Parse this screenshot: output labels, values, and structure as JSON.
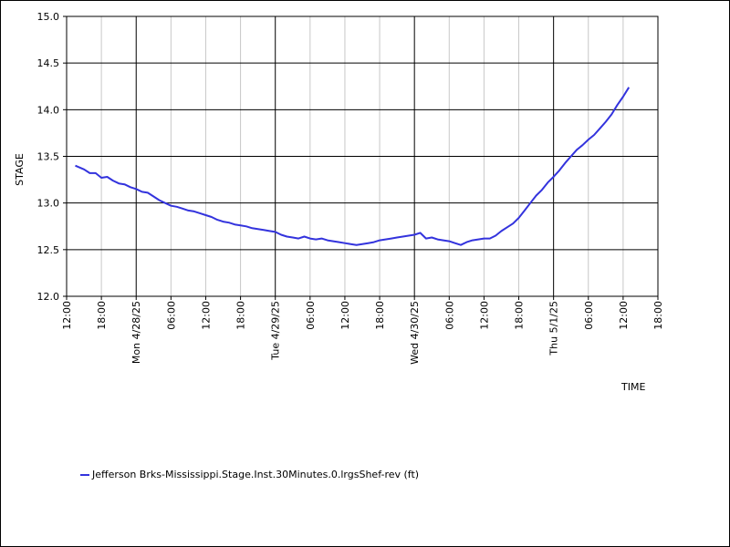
{
  "chart_data": {
    "type": "line",
    "xlabel": "TIME",
    "ylabel": "STAGE",
    "ylim": [
      12.0,
      15.0
    ],
    "y_ticks": [
      "12.0",
      "12.5",
      "13.0",
      "13.5",
      "14.0",
      "14.5",
      "15.0"
    ],
    "x_ticks": [
      {
        "hour": 12,
        "label": "12:00",
        "major": false
      },
      {
        "hour": 18,
        "label": "18:00",
        "major": false
      },
      {
        "hour": 24,
        "label": "Mon 4/28/25",
        "major": true
      },
      {
        "hour": 30,
        "label": "06:00",
        "major": false
      },
      {
        "hour": 36,
        "label": "12:00",
        "major": false
      },
      {
        "hour": 42,
        "label": "18:00",
        "major": false
      },
      {
        "hour": 48,
        "label": "Tue 4/29/25",
        "major": true
      },
      {
        "hour": 54,
        "label": "06:00",
        "major": false
      },
      {
        "hour": 60,
        "label": "12:00",
        "major": false
      },
      {
        "hour": 66,
        "label": "18:00",
        "major": false
      },
      {
        "hour": 72,
        "label": "Wed 4/30/25",
        "major": true
      },
      {
        "hour": 78,
        "label": "06:00",
        "major": false
      },
      {
        "hour": 84,
        "label": "12:00",
        "major": false
      },
      {
        "hour": 90,
        "label": "18:00",
        "major": false
      },
      {
        "hour": 96,
        "label": "Thu 5/1/25",
        "major": true
      },
      {
        "hour": 102,
        "label": "06:00",
        "major": false
      },
      {
        "hour": 108,
        "label": "12:00",
        "major": false
      },
      {
        "hour": 114,
        "label": "18:00",
        "major": false
      }
    ],
    "xlim_hours": [
      12,
      114
    ],
    "grid": true,
    "legend_position": "bottom-left",
    "series": [
      {
        "name": "Jefferson Brks-Mississippi.Stage.Inst.30Minutes.0.lrgsShef-rev (ft)",
        "color": "#3333dd",
        "x_hours": [
          13.5,
          15,
          16,
          17,
          18,
          19,
          20,
          21,
          22,
          23,
          24,
          25,
          26,
          27,
          28,
          29,
          30,
          31,
          32,
          33,
          34,
          35,
          36,
          37,
          38,
          39,
          40,
          41,
          42,
          43,
          44,
          45,
          46,
          47,
          48,
          49,
          50,
          51,
          52,
          53,
          54,
          55,
          56,
          57,
          58,
          59,
          60,
          61,
          62,
          63,
          64,
          65,
          66,
          67,
          68,
          69,
          70,
          71,
          72,
          73,
          74,
          75,
          76,
          77,
          78,
          79,
          80,
          81,
          82,
          83,
          84,
          85,
          86,
          87,
          88,
          89,
          90,
          91,
          92,
          93,
          94,
          95,
          96,
          97,
          98,
          99,
          100,
          101,
          102,
          103,
          104,
          105,
          106,
          107,
          108,
          109
        ],
        "values": [
          13.4,
          13.36,
          13.32,
          13.32,
          13.27,
          13.28,
          13.24,
          13.21,
          13.2,
          13.17,
          13.15,
          13.12,
          13.11,
          13.07,
          13.03,
          13.0,
          12.97,
          12.96,
          12.94,
          12.92,
          12.91,
          12.89,
          12.87,
          12.85,
          12.82,
          12.8,
          12.79,
          12.77,
          12.76,
          12.75,
          12.73,
          12.72,
          12.71,
          12.7,
          12.69,
          12.66,
          12.64,
          12.63,
          12.62,
          12.64,
          12.62,
          12.61,
          12.62,
          12.6,
          12.59,
          12.58,
          12.57,
          12.56,
          12.55,
          12.56,
          12.57,
          12.58,
          12.6,
          12.61,
          12.62,
          12.63,
          12.64,
          12.65,
          12.66,
          12.68,
          12.62,
          12.63,
          12.61,
          12.6,
          12.59,
          12.57,
          12.55,
          12.58,
          12.6,
          12.61,
          12.62,
          12.62,
          12.65,
          12.7,
          12.74,
          12.78,
          12.84,
          12.92,
          13.0,
          13.08,
          13.14,
          13.22,
          13.28,
          13.35,
          13.43,
          13.5,
          13.57,
          13.62,
          13.68,
          13.73,
          13.8,
          13.87,
          13.95,
          14.05,
          14.14,
          14.24
        ]
      }
    ]
  }
}
